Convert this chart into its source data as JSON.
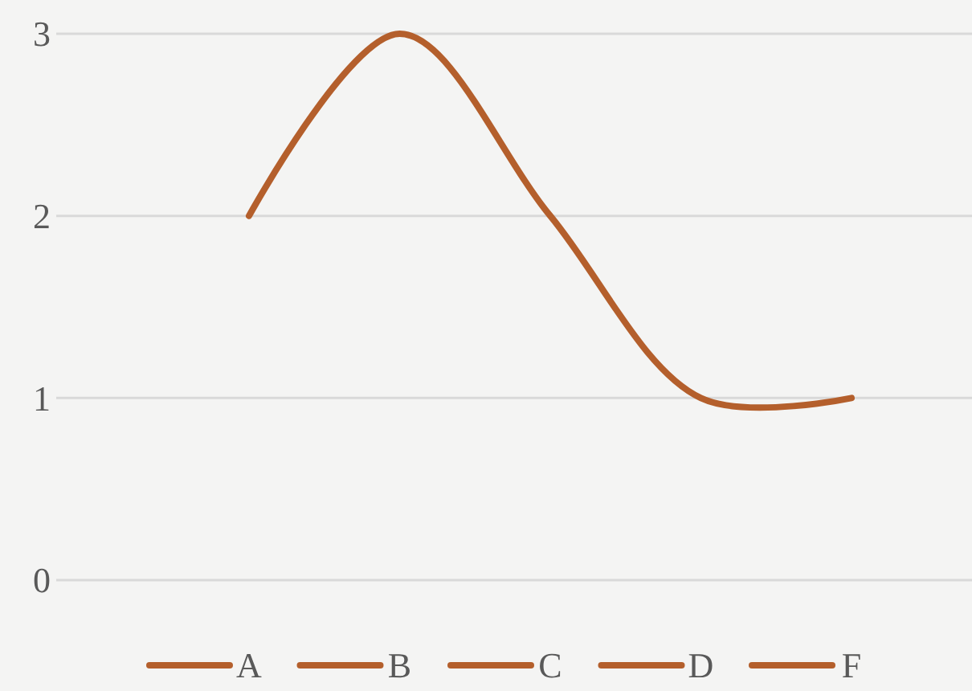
{
  "chart_data": {
    "type": "line",
    "categories": [
      "A",
      "B",
      "C",
      "D",
      "F"
    ],
    "series": [
      {
        "color": "#b45f2c",
        "values": [
          2,
          3,
          2,
          1,
          1
        ]
      }
    ],
    "ylim": [
      0,
      3
    ],
    "yticks": [
      0,
      1,
      2,
      3
    ],
    "grid": "y",
    "marker": "none",
    "line_style": "solid"
  }
}
